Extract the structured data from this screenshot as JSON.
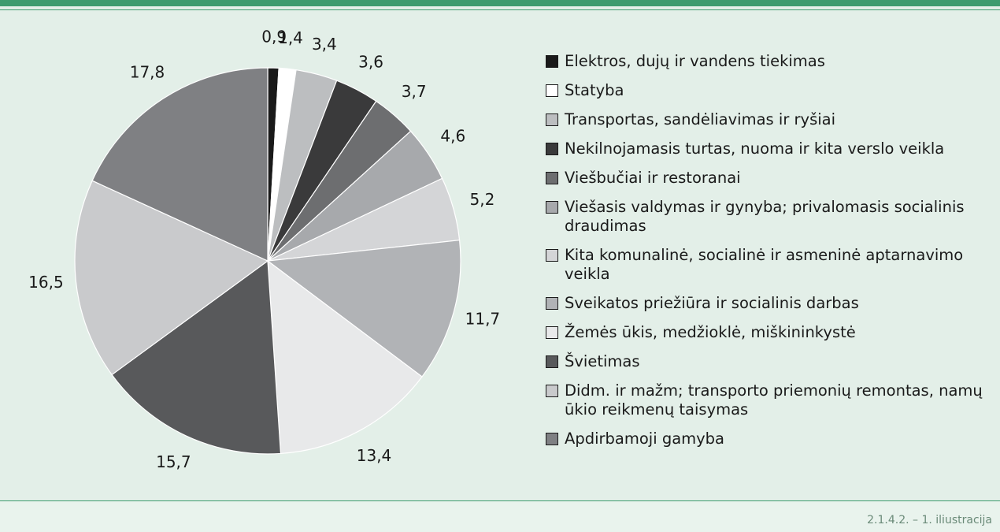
{
  "chart_data": {
    "type": "pie",
    "categories": [
      "Elektros, dujų ir vandens tiekimas",
      "Statyba",
      "Transportas, sandėliavimas ir ryšiai",
      "Nekilnojamasis turtas, nuoma ir kita verslo veikla",
      "Viešbučiai ir restoranai",
      "Viešasis valdymas ir gynyba; privalomasis socialinis draudimas",
      "Kita komunalinė, socialinė ir asmeninė aptarnavimo veikla",
      "Sveikatos priežiūra ir socialinis darbas",
      "Žemės ūkis, medžioklė, miškininkystė",
      "Švietimas",
      "Didm. ir mažm; transporto priemonių remontas, namų ūkio reikmenų taisymas",
      "Apdirbamoji gamyba"
    ],
    "values": [
      0.9,
      1.4,
      3.4,
      3.6,
      3.7,
      4.6,
      5.2,
      11.7,
      13.4,
      15.7,
      16.5,
      17.8
    ],
    "value_labels": [
      "0,9",
      "1,4",
      "3,4",
      "3,6",
      "3,7",
      "4,6",
      "5,2",
      "11,7",
      "13,4",
      "15,7",
      "16,5",
      "17,8"
    ],
    "colors": [
      "#1a1a1a",
      "#ffffff",
      "#bcbec0",
      "#3a3a3b",
      "#6d6e70",
      "#a7a9ac",
      "#d4d5d7",
      "#b1b3b6",
      "#e8e9ea",
      "#58595b",
      "#c9cacc",
      "#7f8083"
    ],
    "legend": "right"
  },
  "footer": "2.1.4.2. – 1. iliustracija"
}
